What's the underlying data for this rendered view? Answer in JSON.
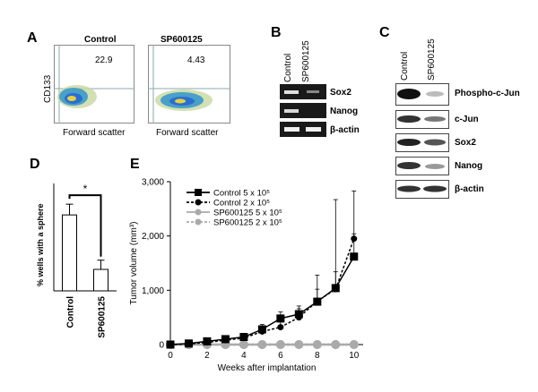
{
  "panels": {
    "A": {
      "letter": "A",
      "plots": [
        {
          "title": "Control",
          "value": "22.9"
        },
        {
          "title": "SP600125",
          "value": "4.43"
        }
      ],
      "ylabel": "CD133",
      "xlabel": "Forward scatter"
    },
    "B": {
      "letter": "B",
      "columns": [
        "Control",
        "SP600125"
      ],
      "rows": [
        "Sox2",
        "Nanog",
        "β-actin"
      ]
    },
    "C": {
      "letter": "C",
      "columns": [
        "Control",
        "SP600125"
      ],
      "rows": [
        "Phospho-c-Jun",
        "c-Jun",
        "Sox2",
        "Nanog",
        "β-actin"
      ]
    },
    "D": {
      "letter": "D"
    },
    "E": {
      "letter": "E"
    }
  },
  "chart_data": [
    {
      "type": "bar",
      "panel": "D",
      "ylabel": "% wells with a sphere",
      "categories": [
        "Control",
        "SP600125"
      ],
      "values": [
        49.5,
        14
      ],
      "errors": [
        7,
        6
      ],
      "ylim": [
        0,
        70
      ],
      "significance": "*",
      "colors": {
        "bar": "#ffffff",
        "stroke": "#000000"
      }
    },
    {
      "type": "line",
      "panel": "E",
      "xlabel": "Weeks after implantation",
      "ylabel": "Tumor volume (mm³)",
      "xlim": [
        0,
        10.5
      ],
      "ylim": [
        0,
        3000
      ],
      "xticks": [
        0,
        2,
        4,
        6,
        8,
        10
      ],
      "yticks": [
        0,
        1000,
        2000,
        3000
      ],
      "ytick_labels": [
        "0",
        "1,000",
        "2,000",
        "3,000"
      ],
      "legend_position": "top-left",
      "series": [
        {
          "name": "Control 5 x 10⁵",
          "color": "#000000",
          "dash": false,
          "marker": "square",
          "x": [
            0,
            1,
            2,
            3,
            4,
            5,
            6,
            7,
            8,
            9,
            10
          ],
          "y": [
            0,
            20,
            60,
            100,
            140,
            280,
            480,
            560,
            790,
            1040,
            1620
          ],
          "err": [
            0,
            10,
            30,
            40,
            60,
            90,
            120,
            150,
            230,
            300,
            420
          ]
        },
        {
          "name": "Control 2 x 10⁵",
          "color": "#000000",
          "dash": true,
          "marker": "circle",
          "x": [
            0,
            1,
            2,
            3,
            4,
            5,
            6,
            7,
            8,
            9,
            10
          ],
          "y": [
            0,
            10,
            40,
            80,
            120,
            240,
            320,
            500,
            800,
            1020,
            1950
          ],
          "err": [
            0,
            10,
            30,
            40,
            50,
            80,
            120,
            160,
            480,
            1650,
            880
          ]
        },
        {
          "name": "SP600125 5 x 10⁵",
          "color": "#aaaaaa",
          "dash": false,
          "marker": "circle",
          "x": [
            0,
            1,
            2,
            3,
            4,
            5,
            6,
            7,
            8,
            9,
            10
          ],
          "y": [
            0,
            0,
            0,
            0,
            0,
            0,
            0,
            0,
            0,
            0,
            0
          ],
          "err": [
            0,
            0,
            0,
            0,
            0,
            0,
            0,
            0,
            0,
            0,
            0
          ]
        },
        {
          "name": "SP600125 2 x 10⁵",
          "color": "#aaaaaa",
          "dash": true,
          "marker": "circle",
          "x": [
            0,
            1,
            2,
            3,
            4,
            5,
            6,
            7,
            8,
            9,
            10
          ],
          "y": [
            0,
            0,
            0,
            0,
            0,
            0,
            0,
            0,
            0,
            0,
            0
          ],
          "err": [
            0,
            0,
            0,
            0,
            0,
            0,
            0,
            0,
            0,
            0,
            0
          ]
        }
      ]
    }
  ]
}
